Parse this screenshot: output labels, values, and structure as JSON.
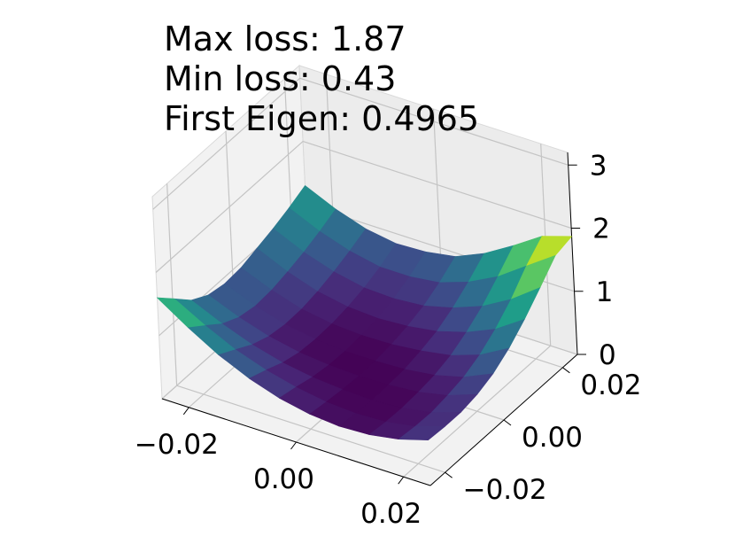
{
  "stats": {
    "max_loss": "Max loss: 1.87",
    "min_loss": "Min loss: 0.43",
    "first_eigen": "First Eigen: 0.4965"
  },
  "chart_data": {
    "type": "surface3d",
    "title": "",
    "xlabel": "",
    "ylabel": "",
    "zlabel": "",
    "colormap": "viridis",
    "grid": true,
    "xlim": [
      -0.025,
      0.025
    ],
    "ylim": [
      -0.025,
      0.025
    ],
    "zlim": [
      0,
      3.2
    ],
    "x_ticks": [
      -0.02,
      0.0,
      0.02
    ],
    "x_tick_labels": [
      "−0.02",
      "0.00",
      "0.02"
    ],
    "y_ticks": [
      -0.02,
      0.0,
      0.02
    ],
    "y_tick_labels": [
      "−0.02",
      "0.00",
      "0.02"
    ],
    "z_ticks": [
      0,
      1,
      2,
      3
    ],
    "z_tick_labels": [
      "0",
      "1",
      "2",
      "3"
    ],
    "x": [
      -0.025,
      -0.0194,
      -0.0139,
      -0.0083,
      -0.0028,
      0.0028,
      0.0083,
      0.0139,
      0.0194,
      0.025
    ],
    "y": [
      -0.025,
      -0.0194,
      -0.0139,
      -0.0083,
      -0.0028,
      0.0028,
      0.0083,
      0.0139,
      0.0194,
      0.025
    ],
    "z": [
      [
        1.6,
        1.28,
        1.0,
        0.78,
        0.62,
        0.52,
        0.48,
        0.5,
        0.58,
        0.72
      ],
      [
        1.35,
        1.08,
        0.85,
        0.68,
        0.56,
        0.48,
        0.45,
        0.47,
        0.55,
        0.7
      ],
      [
        1.1,
        0.88,
        0.7,
        0.57,
        0.49,
        0.45,
        0.43,
        0.46,
        0.54,
        0.7
      ],
      [
        0.95,
        0.75,
        0.6,
        0.5,
        0.45,
        0.43,
        0.44,
        0.48,
        0.58,
        0.75
      ],
      [
        0.9,
        0.7,
        0.56,
        0.48,
        0.44,
        0.44,
        0.46,
        0.52,
        0.64,
        0.85
      ],
      [
        0.92,
        0.72,
        0.57,
        0.49,
        0.46,
        0.47,
        0.52,
        0.6,
        0.76,
        1.02
      ],
      [
        1.0,
        0.78,
        0.62,
        0.53,
        0.5,
        0.53,
        0.6,
        0.74,
        0.94,
        1.25
      ],
      [
        1.08,
        0.86,
        0.7,
        0.6,
        0.58,
        0.62,
        0.74,
        0.92,
        1.18,
        1.52
      ],
      [
        1.18,
        0.96,
        0.8,
        0.7,
        0.7,
        0.76,
        0.92,
        1.16,
        1.48,
        1.8
      ],
      [
        1.3,
        1.08,
        0.92,
        0.84,
        0.86,
        0.94,
        1.14,
        1.42,
        1.72,
        1.87
      ]
    ]
  }
}
